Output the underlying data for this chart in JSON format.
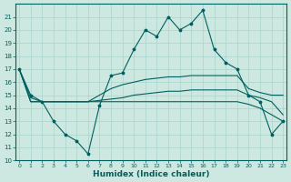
{
  "xlabel": "Humidex (Indice chaleur)",
  "bg_color": "#cce8e0",
  "line_color": "#006060",
  "grid_color": "#a8d4cc",
  "x_values": [
    0,
    1,
    2,
    3,
    4,
    5,
    6,
    7,
    8,
    9,
    10,
    11,
    12,
    13,
    14,
    15,
    16,
    17,
    18,
    19,
    20,
    21,
    22,
    23
  ],
  "main_line": [
    17.0,
    15.0,
    14.5,
    13.0,
    12.0,
    11.5,
    10.5,
    14.2,
    16.5,
    16.7,
    18.5,
    20.0,
    19.5,
    21.0,
    20.0,
    20.5,
    21.5,
    18.5,
    17.5,
    17.0,
    15.0,
    14.5,
    12.0,
    13.0
  ],
  "upper_line": [
    17.0,
    14.8,
    14.5,
    14.5,
    14.5,
    14.5,
    14.5,
    15.0,
    15.5,
    15.8,
    16.0,
    16.2,
    16.3,
    16.4,
    16.4,
    16.5,
    16.5,
    16.5,
    16.5,
    16.5,
    15.5,
    15.2,
    15.0,
    15.0
  ],
  "mid_line": [
    17.0,
    14.5,
    14.5,
    14.5,
    14.5,
    14.5,
    14.5,
    14.6,
    14.7,
    14.8,
    15.0,
    15.1,
    15.2,
    15.3,
    15.3,
    15.4,
    15.4,
    15.4,
    15.4,
    15.4,
    15.0,
    14.8,
    14.5,
    13.5
  ],
  "lower_line": [
    17.0,
    14.5,
    14.5,
    14.5,
    14.5,
    14.5,
    14.5,
    14.5,
    14.5,
    14.5,
    14.5,
    14.5,
    14.5,
    14.5,
    14.5,
    14.5,
    14.5,
    14.5,
    14.5,
    14.5,
    14.3,
    14.0,
    13.5,
    13.0
  ],
  "ylim": [
    10,
    22
  ],
  "yticks": [
    10,
    11,
    12,
    13,
    14,
    15,
    16,
    17,
    18,
    19,
    20,
    21
  ],
  "xticks": [
    0,
    1,
    2,
    3,
    4,
    5,
    6,
    7,
    8,
    9,
    10,
    11,
    12,
    13,
    14,
    15,
    16,
    17,
    18,
    19,
    20,
    21,
    22,
    23
  ],
  "xlim": [
    -0.3,
    23.3
  ]
}
